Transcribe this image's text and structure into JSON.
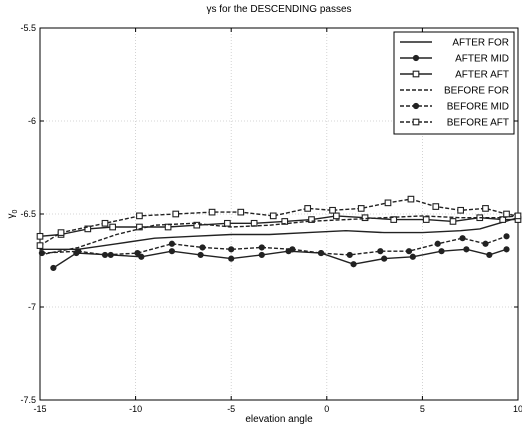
{
  "chart_data": {
    "type": "line",
    "title": "γs for the DESCENDING passes",
    "xlabel": "elevation angle",
    "ylabel": "γ",
    "ylabel_sub": "0",
    "xlim": [
      -15,
      10
    ],
    "ylim": [
      -7.5,
      -5.5
    ],
    "xticks": [
      -15,
      -10,
      -5,
      0,
      5,
      10
    ],
    "yticks": [
      -7.5,
      -7,
      -6.5,
      -6,
      -5.5
    ],
    "xtick_labels": [
      "-15",
      "-10",
      "-5",
      "0",
      "5",
      "10"
    ],
    "ytick_labels": [
      "-7.5",
      "-7",
      "-6.5",
      "-6",
      "-5.5"
    ],
    "grid": true,
    "legend_position": "top-right",
    "series": [
      {
        "name": "AFTER FOR",
        "style": "solid",
        "marker": "none",
        "x": [
          -15,
          -13,
          -11,
          -9,
          -7,
          -5,
          -3,
          -1,
          1,
          3,
          5,
          7,
          8,
          9,
          10
        ],
        "y": [
          -6.69,
          -6.69,
          -6.66,
          -6.63,
          -6.62,
          -6.61,
          -6.61,
          -6.6,
          -6.59,
          -6.6,
          -6.6,
          -6.59,
          -6.58,
          -6.55,
          -6.52
        ]
      },
      {
        "name": "AFTER MID",
        "style": "solid",
        "marker": "dot",
        "x": [
          -14.3,
          -13.1,
          -11.3,
          -9.7,
          -8.1,
          -6.6,
          -5.0,
          -3.4,
          -2.0,
          -0.3,
          1.4,
          3.0,
          4.5,
          6.0,
          7.3,
          8.5,
          9.4
        ],
        "y": [
          -6.79,
          -6.71,
          -6.72,
          -6.73,
          -6.7,
          -6.72,
          -6.74,
          -6.72,
          -6.7,
          -6.71,
          -6.77,
          -6.74,
          -6.73,
          -6.7,
          -6.69,
          -6.72,
          -6.69
        ]
      },
      {
        "name": "AFTER AFT",
        "style": "solid",
        "marker": "square",
        "x": [
          -15,
          -13.9,
          -12.5,
          -11.2,
          -9.8,
          -8.3,
          -6.8,
          -5.2,
          -3.8,
          -2.2,
          -0.8,
          0.5,
          2.0,
          3.5,
          5.2,
          6.6,
          8.0,
          9.2,
          10
        ],
        "y": [
          -6.62,
          -6.61,
          -6.58,
          -6.57,
          -6.57,
          -6.57,
          -6.56,
          -6.55,
          -6.55,
          -6.54,
          -6.53,
          -6.51,
          -6.52,
          -6.53,
          -6.53,
          -6.54,
          -6.52,
          -6.53,
          -6.53
        ]
      },
      {
        "name": "BEFORE FOR",
        "style": "dashed",
        "marker": "none",
        "x": [
          -15,
          -13,
          -11,
          -9,
          -7,
          -5,
          -3,
          -1,
          1,
          3,
          5,
          7,
          9,
          10
        ],
        "y": [
          -6.72,
          -6.68,
          -6.61,
          -6.56,
          -6.55,
          -6.57,
          -6.56,
          -6.54,
          -6.53,
          -6.52,
          -6.51,
          -6.52,
          -6.52,
          -6.51
        ]
      },
      {
        "name": "BEFORE MID",
        "style": "dashed",
        "marker": "dot",
        "x": [
          -14.9,
          -13.0,
          -11.6,
          -9.9,
          -8.1,
          -6.5,
          -5.0,
          -3.4,
          -1.8,
          -0.3,
          1.2,
          2.8,
          4.3,
          5.8,
          7.1,
          8.3,
          9.4
        ],
        "y": [
          -6.71,
          -6.7,
          -6.72,
          -6.71,
          -6.66,
          -6.68,
          -6.69,
          -6.68,
          -6.69,
          -6.71,
          -6.72,
          -6.7,
          -6.7,
          -6.66,
          -6.63,
          -6.66,
          -6.62
        ]
      },
      {
        "name": "BEFORE AFT",
        "style": "dashed",
        "marker": "square",
        "x": [
          -15,
          -13.9,
          -11.6,
          -9.8,
          -7.9,
          -6.0,
          -4.5,
          -2.8,
          -1.0,
          0.3,
          1.8,
          3.2,
          4.4,
          5.7,
          7.0,
          8.3,
          9.4,
          10
        ],
        "y": [
          -6.67,
          -6.6,
          -6.55,
          -6.51,
          -6.5,
          -6.49,
          -6.49,
          -6.51,
          -6.47,
          -6.48,
          -6.47,
          -6.44,
          -6.42,
          -6.46,
          -6.48,
          -6.47,
          -6.5,
          -6.51
        ]
      }
    ]
  }
}
